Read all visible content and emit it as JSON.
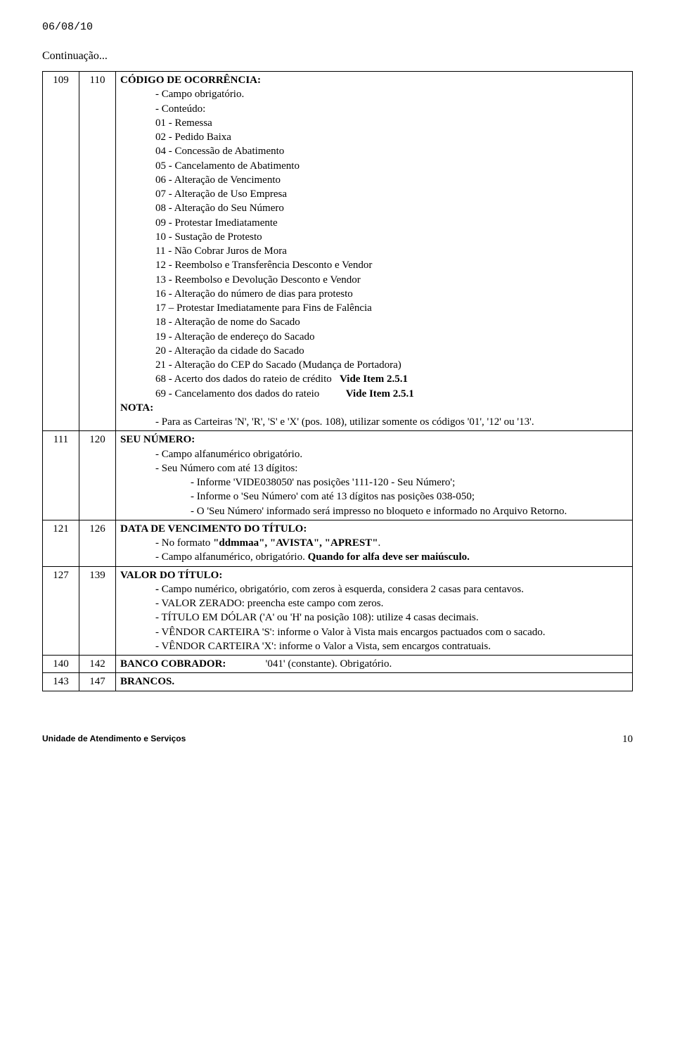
{
  "header": {
    "date": "06/08/10",
    "continuation": "Continuação..."
  },
  "rows": [
    {
      "c1": "109",
      "c2": "110",
      "title": "CÓDIGO DE OCORRÊNCIA:",
      "lines": [
        {
          "t": "- Campo obrigatório.",
          "i": 1
        },
        {
          "t": "- Conteúdo:",
          "i": 1
        },
        {
          "t": "01 - Remessa",
          "i": 1
        },
        {
          "t": "02 - Pedido Baixa",
          "i": 1
        },
        {
          "t": "04 - Concessão de Abatimento",
          "i": 1
        },
        {
          "t": "05 - Cancelamento de Abatimento",
          "i": 1
        },
        {
          "t": "06 - Alteração de Vencimento",
          "i": 1
        },
        {
          "t": "07 - Alteração de Uso Empresa",
          "i": 1
        },
        {
          "t": "08 - Alteração do Seu Número",
          "i": 1
        },
        {
          "t": "09 - Protestar Imediatamente",
          "i": 1
        },
        {
          "t": "10 - Sustação de Protesto",
          "i": 1
        },
        {
          "t": "11 - Não Cobrar Juros de Mora",
          "i": 1
        },
        {
          "t": "12 - Reembolso e Transferência Desconto e Vendor",
          "i": 1
        },
        {
          "t": "13 - Reembolso e Devolução Desconto e Vendor",
          "i": 1
        },
        {
          "t": "16 - Alteração do número de dias para protesto",
          "i": 1
        },
        {
          "t": "17 – Protestar Imediatamente para Fins de Falência",
          "i": 1
        },
        {
          "t": "18 - Alteração de nome do Sacado",
          "i": 1
        },
        {
          "t": "19 - Alteração de endereço do Sacado",
          "i": 1
        },
        {
          "t": "20 - Alteração da cidade do Sacado",
          "i": 1
        },
        {
          "t": "21 - Alteração do CEP do Sacado (Mudança de Portadora)",
          "i": 1
        },
        {
          "pre": "68 - Acerto dos dados do rateio de crédito   ",
          "bold": "Vide  Item 2.5.1",
          "i": 1
        },
        {
          "pre": "69 - Cancelamento dos dados do rateio          ",
          "bold": "Vide  Item 2.5.1",
          "i": 1
        },
        {
          "t": "NOTA:",
          "i": 0,
          "b": true
        },
        {
          "t": "- Para as Carteiras 'N', 'R', 'S' e 'X' (pos. 108), utilizar somente os códigos '01', '12' ou '13'.",
          "i": 1
        }
      ]
    },
    {
      "c1": "111",
      "c2": "120",
      "title": "SEU NÚMERO:",
      "lines": [
        {
          "t": "- Campo alfanumérico obrigatório.",
          "i": 1
        },
        {
          "t": "- Seu Número com até 13 dígitos:",
          "i": 1
        },
        {
          "t": "- Informe 'VIDE038050' nas posições '111-120 - Seu Número';",
          "i": 2
        },
        {
          "t": "- Informe o 'Seu Número' com até 13 dígitos nas posições 038-050;",
          "i": 2
        },
        {
          "t": "- O 'Seu Número' informado será impresso no bloqueto e informado no Arquivo Retorno.",
          "i": 2
        }
      ]
    },
    {
      "c1": "121",
      "c2": "126",
      "title": "DATA DE VENCIMENTO DO TÍTULO:",
      "lines": [
        {
          "pre": "- No formato ",
          "bold": "\"ddmmaa\", \"AVISTA\", \"APREST\"",
          "post": ".",
          "i": 1
        },
        {
          "pre": "- Campo alfanumérico, obrigatório. ",
          "bold": "Quando for alfa deve ser maiúsculo.",
          "i": 1
        }
      ]
    },
    {
      "c1": "127",
      "c2": "139",
      "title": "VALOR DO TÍTULO:",
      "lines": [
        {
          "bold": "- ",
          "post": "Campo numérico, obrigatório, com zeros à esquerda, considera 2 casas para centavos.",
          "i": 1
        },
        {
          "t": "- VALOR ZERADO: preencha este campo com zeros.",
          "i": 1
        },
        {
          "t": "- TÍTULO EM DÓLAR ('A' ou 'H' na posição 108): utilize 4 casas decimais.",
          "i": 1
        },
        {
          "t": "- VÊNDOR CARTEIRA 'S': informe o Valor à Vista mais encargos pactuados com o sacado.",
          "i": 1
        },
        {
          "t": "- VÊNDOR CARTEIRA 'X': informe o Valor a Vista, sem encargos contratuais.",
          "i": 1
        }
      ]
    },
    {
      "c1": "140",
      "c2": "142",
      "title": "BANCO COBRADOR:",
      "title_after": "               '041' (constante). Obrigatório."
    },
    {
      "c1": "143",
      "c2": "147",
      "title": "BRANCOS."
    }
  ],
  "footer": {
    "left": "Unidade de Atendimento e Serviços",
    "page": "10"
  }
}
